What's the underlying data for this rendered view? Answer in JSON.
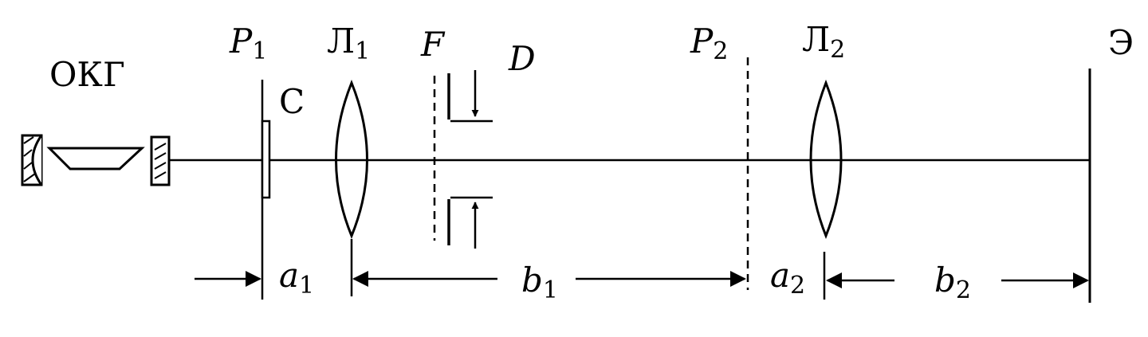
{
  "labels": {
    "laser": "ОКГ",
    "p1": "P",
    "p1_sub": "1",
    "l1": "Л",
    "l1_sub": "1",
    "f": "F",
    "d": "D",
    "p2": "P",
    "p2_sub": "2",
    "l2": "Л",
    "l2_sub": "2",
    "screen": "Э",
    "c": "С",
    "a1": "a",
    "a1_sub": "1",
    "b1": "b",
    "b1_sub": "1",
    "a2": "a",
    "a2_sub": "2",
    "b2": "b",
    "b2_sub": "2"
  },
  "colors": {
    "ink": "#000000",
    "background": "#ffffff"
  }
}
